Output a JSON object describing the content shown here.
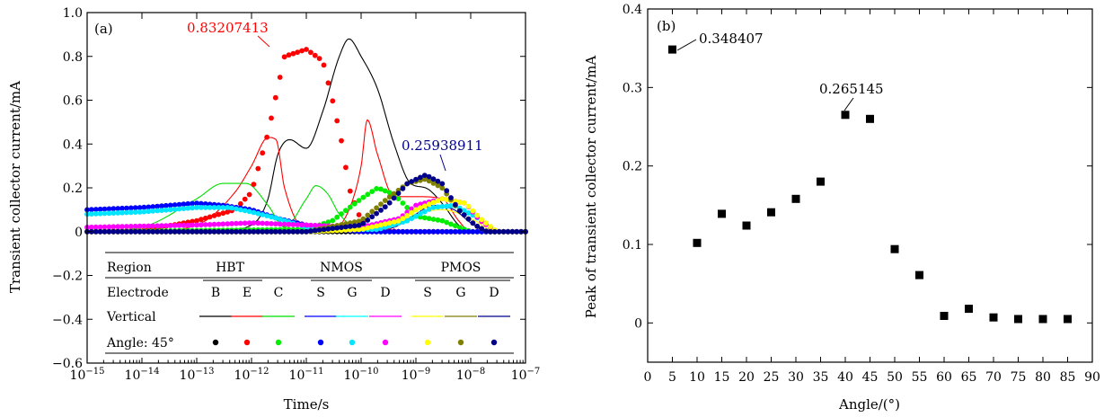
{
  "chart_data": [
    {
      "panel_label": "(a)",
      "type": "line",
      "xlabel": "Time/s",
      "ylabel": "Transient collector current/mA",
      "xscale": "log",
      "xlim": [
        1e-15,
        1e-07
      ],
      "ylim": [
        -0.6,
        1.0
      ],
      "yticks": [
        "−0.6",
        "−0.4",
        "−0.2",
        "0",
        "0.2",
        "0.4",
        "0.6",
        "0.8",
        "1.0"
      ],
      "annotations": [
        {
          "text": "0.83207413",
          "color": "#ff0000"
        },
        {
          "text": "0.25938911",
          "color": "#00008b"
        }
      ],
      "legend": {
        "placement": "lower-right",
        "row_region_label": "Region",
        "row_electrode_label": "Electrode",
        "row_vertical_label": "Vertical",
        "row_angle_label": "Angle: 45°",
        "groups": [
          {
            "name": "HBT",
            "electrodes": [
              "B",
              "E",
              "C"
            ]
          },
          {
            "name": "NMOS",
            "electrodes": [
              "S",
              "G",
              "D"
            ]
          },
          {
            "name": "PMOS",
            "electrodes": [
              "S",
              "G",
              "D"
            ]
          }
        ]
      },
      "series": [
        {
          "group": "HBT",
          "electrode": "B",
          "style": "vertical",
          "color": "#000000",
          "x": [
            1e-15,
            1e-13,
            3e-13,
            1e-12,
            2e-12,
            3e-12,
            5e-12,
            1e-11,
            2e-11,
            4e-11,
            6e-11,
            1e-10,
            2e-10,
            4e-10,
            8e-10,
            1.5e-09,
            3e-09,
            6e-09,
            1e-08,
            1e-07
          ],
          "values": [
            0.0,
            0.0,
            0.005,
            0.03,
            0.15,
            0.35,
            0.42,
            0.38,
            0.55,
            0.8,
            0.88,
            0.8,
            0.65,
            0.4,
            0.22,
            0.2,
            0.13,
            0.03,
            0.0,
            0.0
          ]
        },
        {
          "group": "HBT",
          "electrode": "E",
          "style": "vertical",
          "color": "#ff0000",
          "x": [
            1e-15,
            1e-14,
            1e-13,
            5e-13,
            1e-12,
            2e-12,
            2.8e-12,
            4e-12,
            1e-11,
            3e-11,
            6e-11,
            1e-10,
            1.3e-10,
            2e-10,
            4e-10,
            1e-09,
            3e-09,
            6e-09,
            1e-08,
            1e-07
          ],
          "values": [
            0.0,
            0.0,
            0.03,
            0.18,
            0.3,
            0.43,
            0.42,
            0.2,
            0.01,
            0.01,
            0.1,
            0.3,
            0.51,
            0.35,
            0.16,
            0.16,
            0.15,
            0.05,
            0.0,
            0.0
          ]
        },
        {
          "group": "HBT",
          "electrode": "C",
          "style": "vertical",
          "color": "#00dd00",
          "x": [
            1e-15,
            1e-14,
            1e-13,
            3e-13,
            8e-13,
            2e-12,
            4e-12,
            1e-11,
            1.5e-11,
            2.5e-11,
            4e-11,
            1e-10,
            1e-09,
            1e-08,
            1e-07
          ],
          "values": [
            0.0,
            0.02,
            0.15,
            0.22,
            0.22,
            0.12,
            0.02,
            0.15,
            0.21,
            0.17,
            0.08,
            0.01,
            0.0,
            0.0,
            0.0
          ]
        },
        {
          "group": "NMOS",
          "electrode": "S",
          "style": "vertical",
          "color": "#0000ff",
          "x": [
            1e-15,
            1e-09,
            1e-07
          ],
          "values": [
            0.0,
            0.0,
            0.0
          ]
        },
        {
          "group": "NMOS",
          "electrode": "G",
          "style": "vertical",
          "color": "#00ffff",
          "x": [
            1e-15,
            1e-09,
            1e-07
          ],
          "values": [
            0.0,
            0.0,
            0.0
          ]
        },
        {
          "group": "NMOS",
          "electrode": "D",
          "style": "vertical",
          "color": "#ff00ff",
          "x": [
            1e-15,
            1e-09,
            1e-07
          ],
          "values": [
            0.0,
            0.0,
            0.0
          ]
        },
        {
          "group": "PMOS",
          "electrode": "S",
          "style": "vertical",
          "color": "#ffff00",
          "x": [
            1e-15,
            1e-10,
            3e-10,
            1e-09,
            3e-09,
            1e-08,
            3e-08,
            1e-07
          ],
          "values": [
            0.0,
            0.0,
            0.02,
            0.08,
            0.1,
            0.06,
            0.0,
            0.0
          ]
        },
        {
          "group": "PMOS",
          "electrode": "G",
          "style": "vertical",
          "color": "#808000",
          "x": [
            1e-15,
            1e-09,
            1e-07
          ],
          "values": [
            0.0,
            0.0,
            0.0
          ]
        },
        {
          "group": "PMOS",
          "electrode": "D",
          "style": "vertical",
          "color": "#00008b",
          "x": [
            1e-15,
            1e-10,
            4e-10,
            1e-09,
            2e-09,
            5e-09,
            1e-08,
            2e-08,
            1e-07
          ],
          "values": [
            0.0,
            0.0,
            0.02,
            0.08,
            0.12,
            0.1,
            0.04,
            0.0,
            0.0
          ]
        },
        {
          "group": "HBT",
          "electrode": "B",
          "style": "angle",
          "color": "#000000",
          "x": [
            1e-15,
            1e-12,
            1e-11,
            1e-10,
            1e-09,
            1e-08,
            1e-07
          ],
          "values": [
            0.0,
            0.0,
            0.0,
            0.0,
            0.0,
            0.0,
            0.0
          ]
        },
        {
          "group": "HBT",
          "electrode": "E",
          "style": "angle",
          "color": "#ff0000",
          "x": [
            1e-15,
            1e-14,
            1e-13,
            5e-13,
            1e-12,
            2e-12,
            4e-12,
            1e-11,
            2e-11,
            3e-11,
            4.5e-11,
            6e-11,
            1e-10,
            1.5e-10,
            2.5e-10,
            5e-10,
            1e-09,
            1e-07
          ],
          "values": [
            0.0,
            0.005,
            0.05,
            0.1,
            0.18,
            0.45,
            0.8,
            0.832,
            0.78,
            0.6,
            0.4,
            0.2,
            0.05,
            0.01,
            0.005,
            0.0,
            0.0,
            0.0
          ]
        },
        {
          "group": "HBT",
          "electrode": "C",
          "style": "angle",
          "color": "#00ee00",
          "x": [
            1e-15,
            1e-11,
            3e-11,
            1e-10,
            2e-10,
            4e-10,
            1e-09,
            3e-09,
            1e-08,
            1e-07
          ],
          "values": [
            0.0,
            0.01,
            0.05,
            0.15,
            0.2,
            0.17,
            0.07,
            0.05,
            0.0,
            0.0
          ]
        },
        {
          "group": "NMOS",
          "electrode": "S",
          "style": "angle",
          "color": "#0000ff",
          "x": [
            1e-15,
            1e-14,
            1e-13,
            3e-13,
            1e-12,
            3e-12,
            1e-11,
            3e-11,
            1e-10,
            1e-09,
            1e-08,
            1e-07
          ],
          "values": [
            0.1,
            0.11,
            0.13,
            0.12,
            0.1,
            0.06,
            0.03,
            0.01,
            0.0,
            0.0,
            0.0,
            0.0
          ]
        },
        {
          "group": "NMOS",
          "electrode": "G",
          "style": "angle",
          "color": "#00e5ff",
          "x": [
            1e-15,
            1e-14,
            1e-13,
            4e-13,
            1e-12,
            3e-12,
            1e-11,
            4e-11,
            2e-10,
            7e-10,
            2e-09,
            5e-09,
            1.2e-08,
            3e-08,
            1e-07
          ],
          "values": [
            0.08,
            0.09,
            0.11,
            0.11,
            0.09,
            0.06,
            0.02,
            0.01,
            0.01,
            0.05,
            0.11,
            0.12,
            0.07,
            0.0,
            0.0
          ]
        },
        {
          "group": "NMOS",
          "electrode": "D",
          "style": "angle",
          "color": "#ff00ff",
          "x": [
            1e-15,
            1e-13,
            1e-12,
            1e-11,
            1e-10,
            5e-10,
            1e-09,
            3e-09,
            8e-09,
            1.5e-08,
            3e-08,
            1e-07
          ],
          "values": [
            0.02,
            0.03,
            0.04,
            0.03,
            0.02,
            0.06,
            0.12,
            0.15,
            0.13,
            0.05,
            0.0,
            0.0
          ]
        },
        {
          "group": "PMOS",
          "electrode": "S",
          "style": "angle",
          "color": "#ffff00",
          "x": [
            1e-15,
            1e-11,
            1e-10,
            5e-10,
            1e-09,
            3e-09,
            8e-09,
            1.5e-08,
            3e-08,
            1e-07
          ],
          "values": [
            0.0,
            0.0,
            0.01,
            0.05,
            0.1,
            0.15,
            0.13,
            0.06,
            0.0,
            0.0
          ]
        },
        {
          "group": "PMOS",
          "electrode": "G",
          "style": "angle",
          "color": "#808000",
          "x": [
            1e-15,
            1e-11,
            1e-10,
            3e-10,
            7e-10,
            1.5e-09,
            3e-09,
            6e-09,
            1.2e-08,
            2e-08,
            1e-07
          ],
          "values": [
            0.0,
            0.0,
            0.05,
            0.15,
            0.22,
            0.24,
            0.2,
            0.1,
            0.03,
            0.0,
            0.0
          ]
        },
        {
          "group": "PMOS",
          "electrode": "D",
          "style": "angle",
          "color": "#00008b",
          "x": [
            1e-15,
            1e-11,
            1e-10,
            3e-10,
            7e-10,
            1.5e-09,
            3e-09,
            6e-09,
            1.2e-08,
            2e-08,
            1e-07
          ],
          "values": [
            0.0,
            0.0,
            0.03,
            0.12,
            0.22,
            0.259,
            0.22,
            0.1,
            0.03,
            0.0,
            0.0
          ]
        }
      ]
    },
    {
      "panel_label": "(b)",
      "type": "scatter",
      "xlabel": "Angle/(°)",
      "ylabel": "Peak of transient collector current/mA",
      "xlim": [
        0,
        90
      ],
      "ylim": [
        -0.05,
        0.4
      ],
      "xticks": [
        "0",
        "5",
        "10",
        "15",
        "20",
        "25",
        "30",
        "35",
        "40",
        "45",
        "50",
        "55",
        "60",
        "65",
        "70",
        "75",
        "80",
        "85",
        "90"
      ],
      "yticks": [
        "0",
        "0.1",
        "0.2",
        "0.3",
        "0.4"
      ],
      "marker_color": "#000000",
      "annotations": [
        {
          "text": "0.348407",
          "x": 5,
          "y": 0.348407
        },
        {
          "text": "0.265145",
          "x": 40,
          "y": 0.265145
        }
      ],
      "x": [
        5,
        10,
        15,
        20,
        25,
        30,
        35,
        40,
        45,
        50,
        55,
        60,
        65,
        70,
        75,
        80,
        85
      ],
      "values": [
        0.348407,
        0.102,
        0.139,
        0.124,
        0.141,
        0.158,
        0.18,
        0.265145,
        0.26,
        0.094,
        0.061,
        0.009,
        0.018,
        0.007,
        0.005,
        0.005,
        0.005
      ]
    }
  ]
}
